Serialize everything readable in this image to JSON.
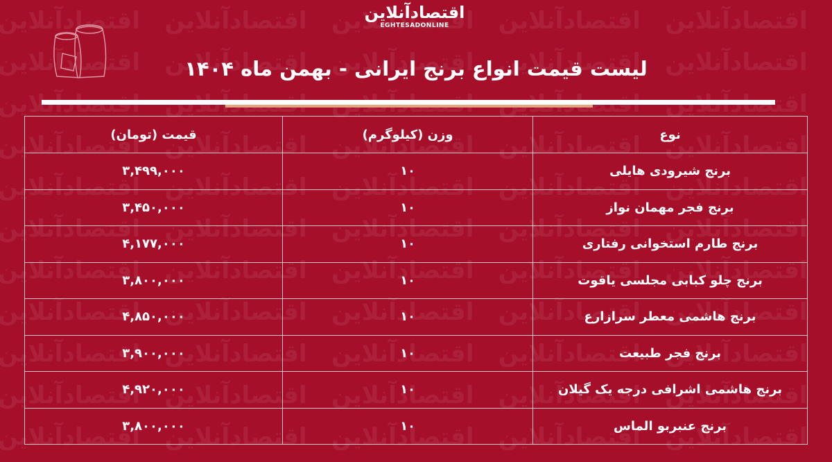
{
  "logo": {
    "text_fa": "اقتصادآنلاین",
    "text_en": "EGHTESADONLINE"
  },
  "title": "لیست قیمت انواع برنج ایرانی - بهمن ماه ۱۴۰۴",
  "colors": {
    "background": "#a60f2a",
    "accent_line": "#e3a77f",
    "text": "#ffffff"
  },
  "table": {
    "headers": [
      "نوع",
      "وزن (کیلوگرم)",
      "قیمت (تومان)"
    ],
    "rows": [
      {
        "type": "برنج شیرودی هایلی",
        "weight": "۱۰",
        "price": "۳,۴۹۹,۰۰۰"
      },
      {
        "type": "برنج فجر مهمان نواز",
        "weight": "۱۰",
        "price": "۳,۴۵۰,۰۰۰"
      },
      {
        "type": "برنج طارم استخوانی رفتاری",
        "weight": "۱۰",
        "price": "۴,۱۷۷,۰۰۰"
      },
      {
        "type": "برنج چلو کبابی مجلسی یاقوت",
        "weight": "۱۰",
        "price": "۳,۸۰۰,۰۰۰"
      },
      {
        "type": "برنج هاشمی معطر سرازارع",
        "weight": "۱۰",
        "price": "۴,۸۵۰,۰۰۰"
      },
      {
        "type": "برنج فجر طبیعت",
        "weight": "۱۰",
        "price": "۳,۹۰۰,۰۰۰"
      },
      {
        "type": "برنج هاشمی اشرافی درجه یک گیلان",
        "weight": "۱۰",
        "price": "۴,۹۲۰,۰۰۰"
      },
      {
        "type": "برنج عنبربو الماس",
        "weight": "۱۰",
        "price": "۳,۸۰۰,۰۰۰"
      }
    ]
  }
}
